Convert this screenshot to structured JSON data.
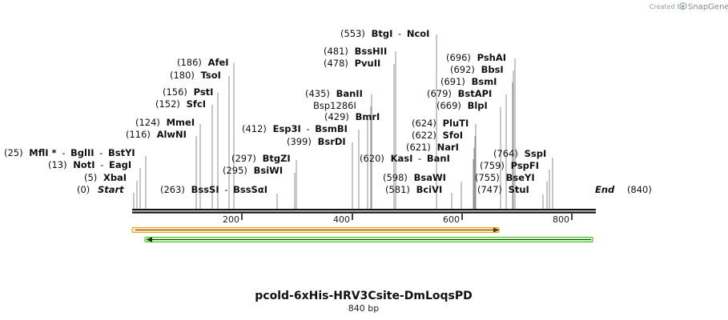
{
  "credit": {
    "text": "Created by",
    "brand": "SnapGene"
  },
  "title": "pcold-6xHis-HRV3Csite-DmLoqsPD",
  "subtitle": "840 bp",
  "sequence_length": 840,
  "ticks": [
    "200",
    "400",
    "600",
    "800"
  ],
  "tick_values": [
    200,
    400,
    600,
    800
  ],
  "ends": {
    "start": {
      "pos": "(0)",
      "label": "Start"
    },
    "end": {
      "label": "End",
      "pos": "(840)"
    }
  },
  "sites": [
    {
      "pos": "(5)",
      "names": [
        "XbaI"
      ]
    },
    {
      "pos": "(13)",
      "names": [
        "NotI",
        "EagI"
      ]
    },
    {
      "pos": "(25)",
      "names": [
        "MflI *",
        "BglII",
        "BstYI"
      ]
    },
    {
      "pos": "(116)",
      "names": [
        "AlwNI"
      ]
    },
    {
      "pos": "(124)",
      "names": [
        "MmeI"
      ]
    },
    {
      "pos": "(152)",
      "names": [
        "SfcI"
      ]
    },
    {
      "pos": "(156)",
      "names": [
        "PstI"
      ]
    },
    {
      "pos": "(180)",
      "names": [
        "TsoI"
      ]
    },
    {
      "pos": "(186)",
      "names": [
        "AfeI"
      ]
    },
    {
      "pos": "(263)",
      "names": [
        "BssSI",
        "BssSαI"
      ]
    },
    {
      "pos": "(295)",
      "names": [
        "BsiWI"
      ]
    },
    {
      "pos": "(297)",
      "names": [
        "BtgZI"
      ]
    },
    {
      "pos": "(399)",
      "names": [
        "BsrDI"
      ]
    },
    {
      "pos": "(412)",
      "names": [
        "Esp3I",
        "BsmBI"
      ]
    },
    {
      "pos": "(429)",
      "names": [
        "BmrI"
      ]
    },
    {
      "pos": "(435)",
      "names": [
        "BanII"
      ]
    },
    {
      "pos": "",
      "names": [
        "Bsp1286I"
      ]
    },
    {
      "pos": "(478)",
      "names": [
        "PvuII"
      ]
    },
    {
      "pos": "(481)",
      "names": [
        "BssHII"
      ]
    },
    {
      "pos": "(553)",
      "names": [
        "BtgI",
        "NcoI"
      ]
    },
    {
      "pos": "(581)",
      "names": [
        "BciVI"
      ]
    },
    {
      "pos": "(598)",
      "names": [
        "BsaWI"
      ]
    },
    {
      "pos": "(620)",
      "names": [
        "KasI",
        "BanI"
      ]
    },
    {
      "pos": "(621)",
      "names": [
        "NarI"
      ]
    },
    {
      "pos": "(622)",
      "names": [
        "SfoI"
      ]
    },
    {
      "pos": "(624)",
      "names": [
        "PluTI"
      ]
    },
    {
      "pos": "(669)",
      "names": [
        "BlpI"
      ]
    },
    {
      "pos": "(679)",
      "names": [
        "BstAPI"
      ]
    },
    {
      "pos": "(691)",
      "names": [
        "BsmI"
      ]
    },
    {
      "pos": "(692)",
      "names": [
        "BbsI"
      ]
    },
    {
      "pos": "(696)",
      "names": [
        "PshAI"
      ]
    },
    {
      "pos": "(747)",
      "names": [
        "StuI"
      ]
    },
    {
      "pos": "(755)",
      "names": [
        "BseYI"
      ]
    },
    {
      "pos": "(759)",
      "names": [
        "PspFI"
      ]
    },
    {
      "pos": "(764)",
      "names": [
        "SspI"
      ]
    }
  ],
  "features": [
    {
      "name": "orange-feature",
      "from": 0,
      "to": 670,
      "direction": "forward",
      "color": "#f0a21a",
      "fill": "#fde6b0"
    },
    {
      "name": "green-feature",
      "from": 25,
      "to": 840,
      "direction": "reverse",
      "color": "#3bbf1c",
      "fill": "#d6f5c4"
    }
  ],
  "colors": {
    "backbone": "#111111",
    "leader": "#777777"
  }
}
